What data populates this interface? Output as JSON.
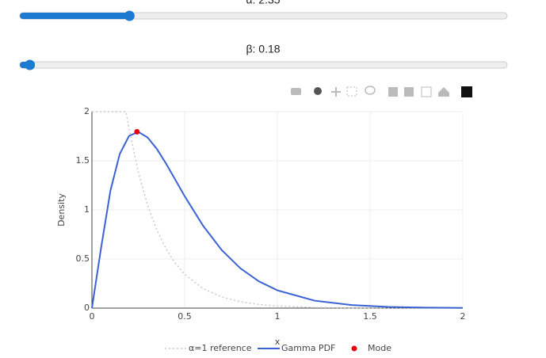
{
  "sliders": [
    {
      "label": "α: 2.35",
      "value": 2.35,
      "min": 1,
      "max": 7
    },
    {
      "label": "β: 0.18",
      "value": 0.18,
      "min": 0.1,
      "max": 4
    }
  ],
  "chart_data": {
    "type": "line",
    "x_label": "x",
    "y_label": "Density",
    "xlim": [
      0,
      2
    ],
    "ylim": [
      0,
      2
    ],
    "xticks": [
      0,
      0.5,
      1,
      1.5,
      2
    ],
    "yticks": [
      0,
      0.5,
      1,
      1.5,
      2
    ],
    "grid": true,
    "series": [
      {
        "name": "α=1 reference",
        "color": "#c8c8c8",
        "dash": "dot",
        "x": [
          0,
          0.184,
          0.2,
          0.25,
          0.3,
          0.35,
          0.4,
          0.45,
          0.5,
          0.6,
          0.7,
          0.8,
          0.9,
          1.0,
          1.2,
          1.4,
          1.6,
          1.8,
          2.0
        ],
        "values": [
          2,
          2,
          1.829,
          1.386,
          1.049,
          0.795,
          0.602,
          0.456,
          0.345,
          0.198,
          0.114,
          0.065,
          0.037,
          0.021,
          0.007,
          0.002,
          0.001,
          0.0003,
          0.0001
        ]
      },
      {
        "name": "Gamma PDF",
        "color": "#3a62d4",
        "x": [
          0,
          0.05,
          0.1,
          0.15,
          0.2,
          0.25,
          0.3,
          0.35,
          0.4,
          0.45,
          0.5,
          0.6,
          0.7,
          0.8,
          0.9,
          1.0,
          1.2,
          1.4,
          1.6,
          1.8,
          2.0
        ],
        "values": [
          0,
          0.62,
          1.198,
          1.569,
          1.753,
          1.794,
          1.738,
          1.621,
          1.471,
          1.306,
          1.14,
          0.837,
          0.591,
          0.406,
          0.273,
          0.181,
          0.0761,
          0.0308,
          0.0122,
          0.0047,
          0.0018
        ]
      },
      {
        "name": "Mode",
        "color": "#e8000b",
        "mode": "markers",
        "x": [
          0.243
        ],
        "values": [
          1.795
        ]
      }
    ]
  }
}
